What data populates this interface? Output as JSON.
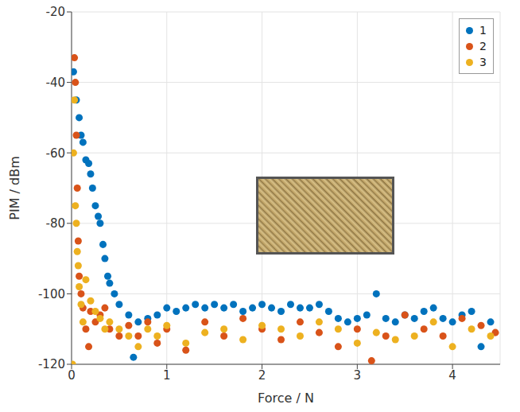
{
  "chart_data": {
    "type": "scatter",
    "x_label": "Force / N",
    "y_label": "PIM / dBm",
    "xlim": [
      0,
      4.5
    ],
    "xticks": [
      0,
      1,
      2,
      3,
      4
    ],
    "ylim": [
      -120,
      -20
    ],
    "yticks": [
      -120,
      -100,
      -80,
      -60,
      -40,
      -20
    ],
    "grid": true,
    "legend": "top-right",
    "marker": "circle",
    "series": [
      {
        "name": "1",
        "color": "#0072BD",
        "x": [
          0.02,
          0.05,
          0.08,
          0.1,
          0.12,
          0.15,
          0.18,
          0.2,
          0.22,
          0.25,
          0.28,
          0.3,
          0.33,
          0.35,
          0.38,
          0.4,
          0.45,
          0.5,
          0.6,
          0.65,
          0.7,
          0.8,
          0.9,
          1.0,
          1.1,
          1.2,
          1.3,
          1.4,
          1.5,
          1.6,
          1.7,
          1.8,
          1.9,
          2.0,
          2.1,
          2.2,
          2.3,
          2.4,
          2.5,
          2.6,
          2.7,
          2.8,
          2.9,
          3.0,
          3.1,
          3.2,
          3.3,
          3.4,
          3.5,
          3.6,
          3.7,
          3.8,
          3.9,
          4.0,
          4.1,
          4.2,
          4.3,
          4.4
        ],
        "values": [
          -37,
          -45,
          -50,
          -55,
          -57,
          -62,
          -63,
          -66,
          -70,
          -75,
          -78,
          -80,
          -86,
          -90,
          -95,
          -97,
          -100,
          -103,
          -106,
          -118,
          -108,
          -107,
          -106,
          -104,
          -105,
          -104,
          -103,
          -104,
          -103,
          -104,
          -103,
          -105,
          -104,
          -103,
          -104,
          -105,
          -103,
          -104,
          -104,
          -103,
          -105,
          -107,
          -108,
          -107,
          -106,
          -100,
          -107,
          -108,
          -106,
          -107,
          -105,
          -104,
          -107,
          -108,
          -106,
          -105,
          -115,
          -108
        ]
      },
      {
        "name": "2",
        "color": "#D95319",
        "x": [
          0.03,
          0.04,
          0.05,
          0.06,
          0.07,
          0.08,
          0.1,
          0.12,
          0.15,
          0.18,
          0.2,
          0.25,
          0.3,
          0.35,
          0.4,
          0.5,
          0.6,
          0.7,
          0.8,
          0.9,
          1.0,
          1.2,
          1.4,
          1.6,
          1.8,
          2.0,
          2.2,
          2.4,
          2.6,
          2.8,
          3.0,
          3.15,
          3.3,
          3.5,
          3.7,
          3.9,
          4.1,
          4.3,
          4.45
        ],
        "values": [
          -33,
          -40,
          -55,
          -70,
          -85,
          -95,
          -100,
          -104,
          -110,
          -115,
          -105,
          -108,
          -106,
          -104,
          -110,
          -112,
          -109,
          -112,
          -108,
          -114,
          -110,
          -116,
          -108,
          -112,
          -107,
          -110,
          -113,
          -108,
          -111,
          -115,
          -110,
          -119,
          -112,
          -106,
          -110,
          -112,
          -107,
          -109,
          -111
        ]
      },
      {
        "name": "3",
        "color": "#EDB120",
        "x": [
          0.01,
          0.02,
          0.03,
          0.04,
          0.05,
          0.06,
          0.07,
          0.08,
          0.1,
          0.12,
          0.15,
          0.2,
          0.25,
          0.3,
          0.35,
          0.4,
          0.5,
          0.6,
          0.7,
          0.8,
          0.9,
          1.0,
          1.2,
          1.4,
          1.6,
          1.8,
          2.0,
          2.2,
          2.4,
          2.6,
          2.8,
          3.0,
          3.2,
          3.4,
          3.6,
          3.8,
          4.0,
          4.2,
          4.4
        ],
        "values": [
          -120,
          -60,
          -45,
          -75,
          -80,
          -88,
          -92,
          -98,
          -103,
          -108,
          -96,
          -102,
          -105,
          -107,
          -110,
          -108,
          -110,
          -112,
          -115,
          -110,
          -112,
          -109,
          -114,
          -111,
          -110,
          -113,
          -109,
          -110,
          -112,
          -108,
          -110,
          -114,
          -111,
          -113,
          -112,
          -108,
          -115,
          -110,
          -112
        ]
      }
    ]
  }
}
